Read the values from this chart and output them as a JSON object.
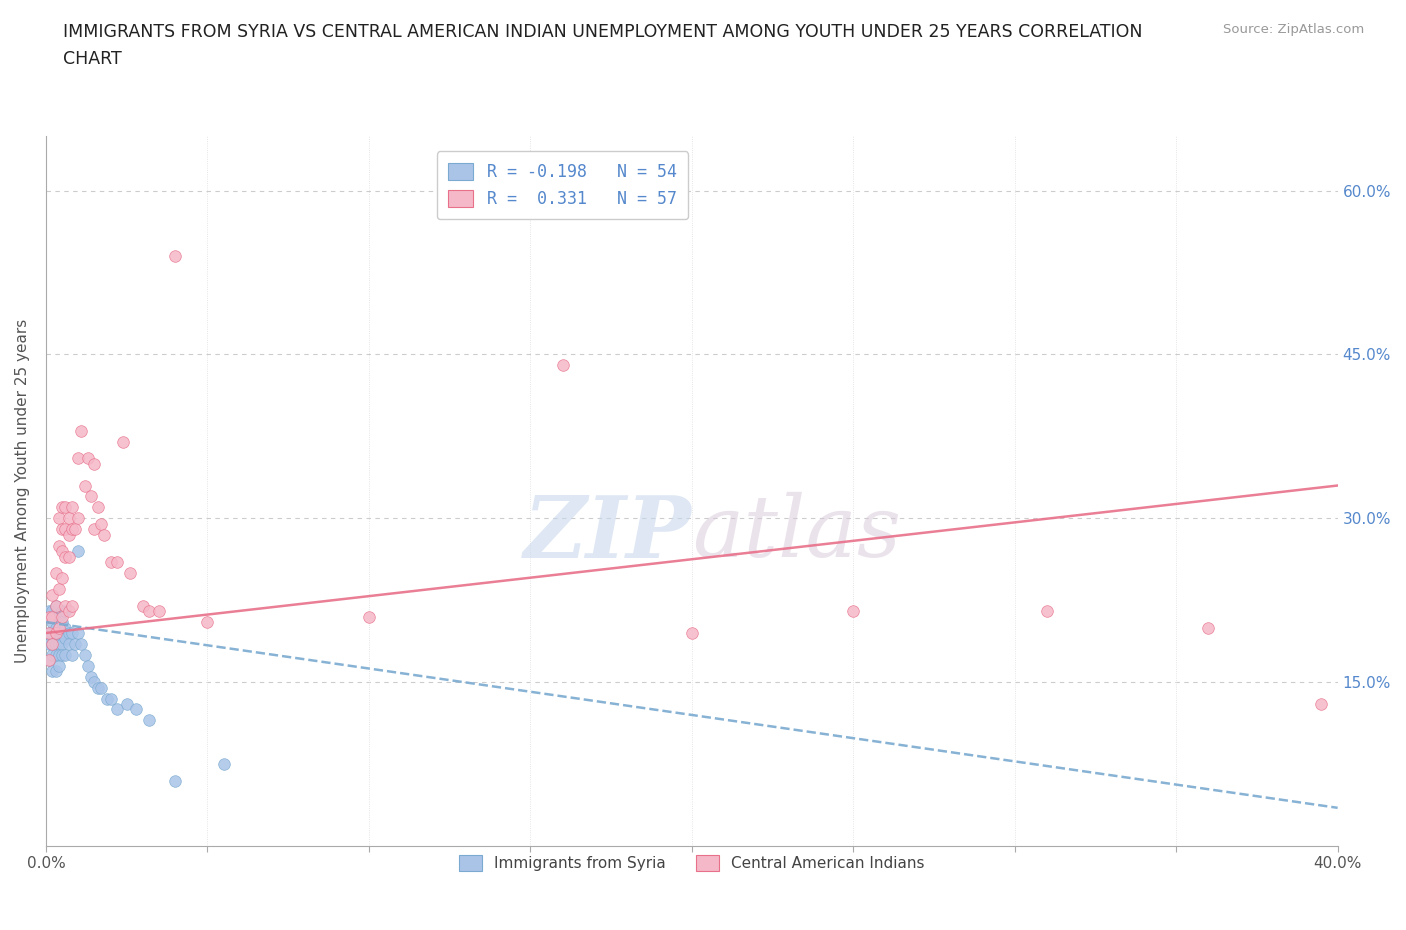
{
  "title": "IMMIGRANTS FROM SYRIA VS CENTRAL AMERICAN INDIAN UNEMPLOYMENT AMONG YOUTH UNDER 25 YEARS CORRELATION\nCHART",
  "source": "Source: ZipAtlas.com",
  "ylabel": "Unemployment Among Youth under 25 years",
  "xlim": [
    0,
    0.4
  ],
  "ylim": [
    0,
    0.65
  ],
  "yticks_right": [
    0.0,
    0.15,
    0.3,
    0.45,
    0.6
  ],
  "ytick_labels_right": [
    "",
    "15.0%",
    "30.0%",
    "45.0%",
    "60.0%"
  ],
  "xtick_positions": [
    0.0,
    0.05,
    0.1,
    0.15,
    0.2,
    0.25,
    0.3,
    0.35,
    0.4
  ],
  "xtick_labels": [
    "0.0%",
    "",
    "",
    "",
    "",
    "",
    "",
    "",
    "40.0%"
  ],
  "watermark_zip": "ZIP",
  "watermark_atlas": "atlas",
  "series1_color": "#aac4e8",
  "series2_color": "#f5b8c8",
  "trend1_color": "#7aaad0",
  "trend2_color": "#e8708a",
  "series1_label": "Immigrants from Syria",
  "series2_label": "Central American Indians",
  "legend_r1": "R = -0.198",
  "legend_n1": "N = 54",
  "legend_r2": "R =  0.331",
  "legend_n2": "N = 57",
  "blue_x": [
    0.001,
    0.001,
    0.001,
    0.001,
    0.002,
    0.002,
    0.002,
    0.002,
    0.002,
    0.002,
    0.003,
    0.003,
    0.003,
    0.003,
    0.003,
    0.003,
    0.003,
    0.004,
    0.004,
    0.004,
    0.004,
    0.004,
    0.004,
    0.005,
    0.005,
    0.005,
    0.005,
    0.005,
    0.006,
    0.006,
    0.006,
    0.006,
    0.007,
    0.007,
    0.008,
    0.008,
    0.009,
    0.01,
    0.01,
    0.011,
    0.012,
    0.013,
    0.014,
    0.015,
    0.016,
    0.017,
    0.019,
    0.02,
    0.022,
    0.025,
    0.028,
    0.032,
    0.04,
    0.055
  ],
  "blue_y": [
    0.215,
    0.195,
    0.185,
    0.17,
    0.215,
    0.205,
    0.195,
    0.185,
    0.175,
    0.16,
    0.22,
    0.21,
    0.2,
    0.195,
    0.185,
    0.175,
    0.16,
    0.21,
    0.2,
    0.195,
    0.185,
    0.175,
    0.165,
    0.215,
    0.205,
    0.195,
    0.185,
    0.175,
    0.215,
    0.2,
    0.19,
    0.175,
    0.195,
    0.185,
    0.195,
    0.175,
    0.185,
    0.27,
    0.195,
    0.185,
    0.175,
    0.165,
    0.155,
    0.15,
    0.145,
    0.145,
    0.135,
    0.135,
    0.125,
    0.13,
    0.125,
    0.115,
    0.06,
    0.075
  ],
  "pink_x": [
    0.001,
    0.001,
    0.001,
    0.002,
    0.002,
    0.002,
    0.003,
    0.003,
    0.003,
    0.004,
    0.004,
    0.004,
    0.004,
    0.005,
    0.005,
    0.005,
    0.005,
    0.005,
    0.006,
    0.006,
    0.006,
    0.006,
    0.007,
    0.007,
    0.007,
    0.007,
    0.008,
    0.008,
    0.008,
    0.009,
    0.01,
    0.01,
    0.011,
    0.012,
    0.013,
    0.014,
    0.015,
    0.015,
    0.016,
    0.017,
    0.018,
    0.02,
    0.022,
    0.024,
    0.026,
    0.03,
    0.032,
    0.035,
    0.04,
    0.05,
    0.1,
    0.16,
    0.2,
    0.25,
    0.31,
    0.36,
    0.395
  ],
  "pink_y": [
    0.21,
    0.195,
    0.17,
    0.23,
    0.21,
    0.185,
    0.25,
    0.22,
    0.195,
    0.3,
    0.275,
    0.235,
    0.2,
    0.31,
    0.29,
    0.27,
    0.245,
    0.21,
    0.31,
    0.29,
    0.265,
    0.22,
    0.3,
    0.285,
    0.265,
    0.215,
    0.31,
    0.29,
    0.22,
    0.29,
    0.355,
    0.3,
    0.38,
    0.33,
    0.355,
    0.32,
    0.35,
    0.29,
    0.31,
    0.295,
    0.285,
    0.26,
    0.26,
    0.37,
    0.25,
    0.22,
    0.215,
    0.215,
    0.54,
    0.205,
    0.21,
    0.44,
    0.195,
    0.215,
    0.215,
    0.2,
    0.13
  ],
  "pink_trend_x0": 0.0,
  "pink_trend_y0": 0.195,
  "pink_trend_x1": 0.4,
  "pink_trend_y1": 0.33,
  "blue_trend_x0": 0.0,
  "blue_trend_y0": 0.205,
  "blue_trend_x1": 0.4,
  "blue_trend_y1": 0.035
}
